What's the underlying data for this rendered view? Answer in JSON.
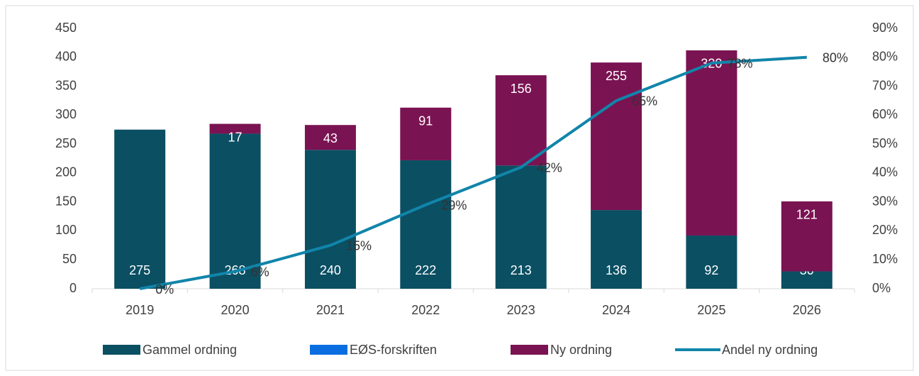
{
  "chart_data": {
    "type": "bar",
    "categories": [
      "2019",
      "2020",
      "2021",
      "2022",
      "2023",
      "2024",
      "2025",
      "2026"
    ],
    "series": [
      {
        "name": "Gammel ordning",
        "color": "#0b4f63",
        "stacked": true,
        "labels": true,
        "values": [
          275,
          268,
          240,
          222,
          213,
          136,
          92,
          30
        ]
      },
      {
        "name": "EØS-forskriften",
        "color": "#0a6ee0",
        "stacked": true,
        "labels": false,
        "values": [
          0,
          0,
          0,
          0,
          0,
          0,
          0,
          0
        ]
      },
      {
        "name": "Ny ordning",
        "color": "#7a1352",
        "stacked": true,
        "labels": true,
        "values": [
          null,
          17,
          43,
          91,
          156,
          255,
          320,
          121
        ]
      },
      {
        "name": "Andel ny ordning",
        "color": "#1185aa",
        "type": "line",
        "axis": "y2",
        "values": [
          0,
          6,
          15,
          29,
          42,
          65,
          78,
          80
        ],
        "value_labels": [
          "0%",
          "6%",
          "15%",
          "29%",
          "42%",
          "65%",
          "78%",
          "80%"
        ]
      }
    ],
    "ylim": [
      0,
      450
    ],
    "yticks": [
      0,
      50,
      100,
      150,
      200,
      250,
      300,
      350,
      400,
      450
    ],
    "y2lim": [
      0,
      90
    ],
    "y2ticks": [
      {
        "value": 0,
        "label": "0%"
      },
      {
        "value": 10,
        "label": "10%"
      },
      {
        "value": 20,
        "label": "20%"
      },
      {
        "value": 30,
        "label": "30%"
      },
      {
        "value": 40,
        "label": "40%"
      },
      {
        "value": 50,
        "label": "50%"
      },
      {
        "value": 60,
        "label": "60%"
      },
      {
        "value": 70,
        "label": "70%"
      },
      {
        "value": 80,
        "label": "80%"
      },
      {
        "value": 90,
        "label": "90%"
      }
    ],
    "grid": false,
    "legend": "bottom"
  }
}
